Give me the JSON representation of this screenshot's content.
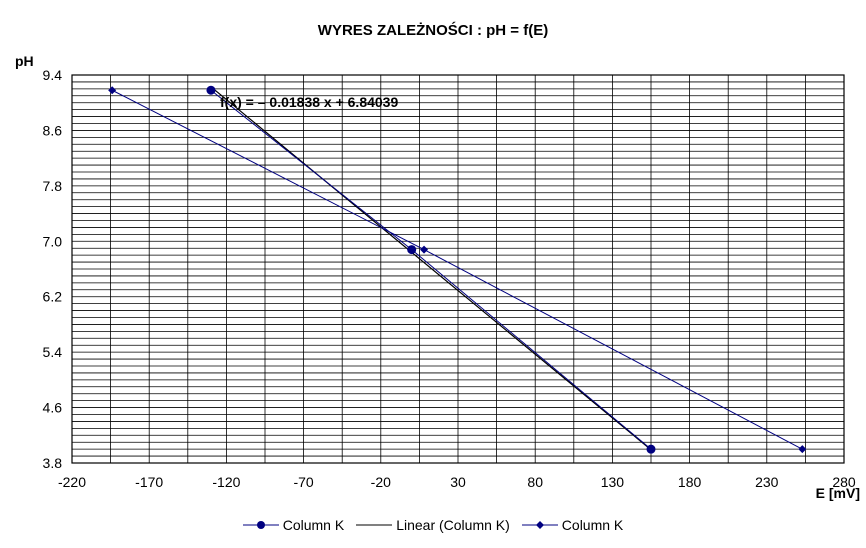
{
  "chart_data": {
    "type": "scatter",
    "title": "WYRES ZALEŻNOŚCI :  pH = f(E)",
    "xlabel": "E [mV]",
    "ylabel": "pH",
    "xlim": [
      -220,
      280
    ],
    "ylim": [
      3.8,
      9.4
    ],
    "x_ticks": [
      "-220",
      "-170",
      "-120",
      "-70",
      "-20",
      "30",
      "80",
      "130",
      "180",
      "230",
      "280"
    ],
    "y_ticks": [
      "9.4",
      "8.6",
      "7.8",
      "7.0",
      "6.2",
      "5.4",
      "4.6",
      "3.8"
    ],
    "x_tick_values": [
      -220,
      -170,
      -120,
      -70,
      -20,
      30,
      80,
      130,
      180,
      230,
      280
    ],
    "y_tick_values": [
      9.4,
      8.6,
      7.8,
      7.0,
      6.2,
      5.4,
      4.6,
      3.8
    ],
    "x_major_step": 50,
    "x_minor_step": 25,
    "y_minor_step": 0.1,
    "grid": true,
    "series": [
      {
        "name": "Column K",
        "marker": "circle",
        "color": "#000080",
        "points": [
          [
            -130,
            9.18
          ],
          [
            0,
            6.88
          ],
          [
            155,
            4.0
          ]
        ]
      },
      {
        "name": "Column K",
        "marker": "diamond",
        "color": "#000080",
        "points": [
          [
            -194,
            9.18
          ],
          [
            8,
            6.88
          ],
          [
            253,
            4.0
          ]
        ]
      }
    ],
    "trendline": {
      "name": "Linear (Column K)",
      "color": "#000000",
      "slope": -0.01838,
      "intercept": 6.84039,
      "x_range": [
        -130,
        155
      ],
      "equation": "f(x) = – 0.01838 x + 6.84039"
    },
    "legend_position": "bottom"
  },
  "legend": {
    "item1": "Column K",
    "item2": "Linear (Column K)",
    "item3": "Column K"
  }
}
